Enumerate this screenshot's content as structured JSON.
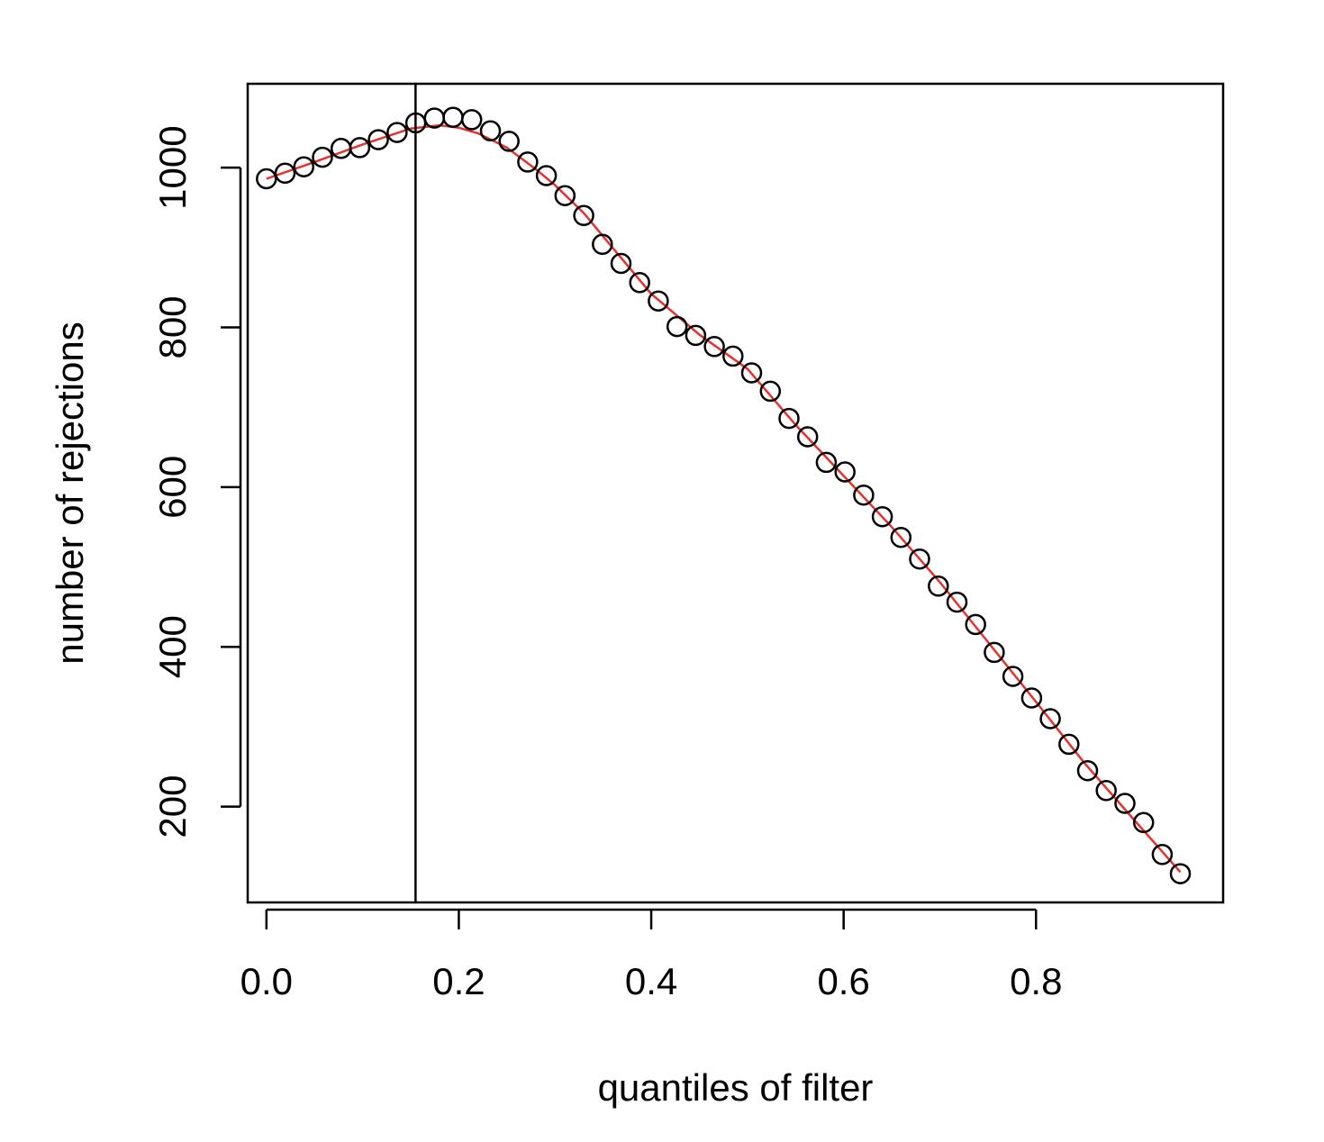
{
  "chart_data": {
    "type": "scatter",
    "xlabel": "quantiles of filter",
    "ylabel": "number of rejections",
    "xlim": [
      -0.0195,
      0.9945
    ],
    "ylim": [
      80,
      1105
    ],
    "xticks": [
      0.0,
      0.2,
      0.4,
      0.6,
      0.8
    ],
    "xtick_labels": [
      "0.0",
      "0.2",
      "0.4",
      "0.6",
      "0.8"
    ],
    "yticks": [
      200,
      400,
      600,
      800,
      1000
    ],
    "ytick_labels": [
      "200",
      "400",
      "600",
      "800",
      "1000"
    ],
    "vertical_line_x": 0.155,
    "grid": false,
    "points": {
      "x": [
        0.0,
        0.0194,
        0.0388,
        0.0582,
        0.0776,
        0.097,
        0.1164,
        0.1358,
        0.1552,
        0.1746,
        0.194,
        0.2134,
        0.2328,
        0.2522,
        0.2716,
        0.291,
        0.3104,
        0.3298,
        0.3492,
        0.3686,
        0.388,
        0.4074,
        0.4268,
        0.4462,
        0.4656,
        0.485,
        0.5044,
        0.5238,
        0.5432,
        0.5626,
        0.582,
        0.6014,
        0.6208,
        0.6402,
        0.6596,
        0.679,
        0.6984,
        0.7178,
        0.7372,
        0.7566,
        0.776,
        0.7954,
        0.8148,
        0.8342,
        0.8536,
        0.873,
        0.8924,
        0.9118,
        0.9312,
        0.95
      ],
      "y": [
        986,
        993,
        1001,
        1013,
        1024,
        1025,
        1035,
        1044,
        1056,
        1062,
        1063,
        1060,
        1046,
        1033,
        1007,
        990,
        965,
        940,
        904,
        880,
        856,
        833,
        801,
        790,
        776,
        764,
        743,
        720,
        686,
        663,
        631,
        619,
        590,
        563,
        537,
        510,
        476,
        456,
        428,
        393,
        363,
        336,
        310,
        278,
        245,
        220,
        204,
        180,
        140,
        116
      ]
    },
    "fit_line": {
      "color": "#e8312a",
      "x": [
        0.0,
        0.05,
        0.1,
        0.15,
        0.18,
        0.2,
        0.22,
        0.25,
        0.28,
        0.3,
        0.33,
        0.35,
        0.4,
        0.45,
        0.5,
        0.55,
        0.6,
        0.65,
        0.7,
        0.75,
        0.8,
        0.85,
        0.9,
        0.95
      ],
      "y": [
        986,
        1007,
        1029,
        1049,
        1053,
        1050,
        1043,
        1025,
        998,
        978,
        943,
        914,
        842,
        791,
        748,
        678,
        614,
        550,
        481,
        406,
        331,
        255,
        186,
        118
      ]
    },
    "colors": {
      "points": "#000000",
      "fit_line": "#e8312a",
      "vertical_line": "#000000",
      "axes": "#000000"
    }
  }
}
